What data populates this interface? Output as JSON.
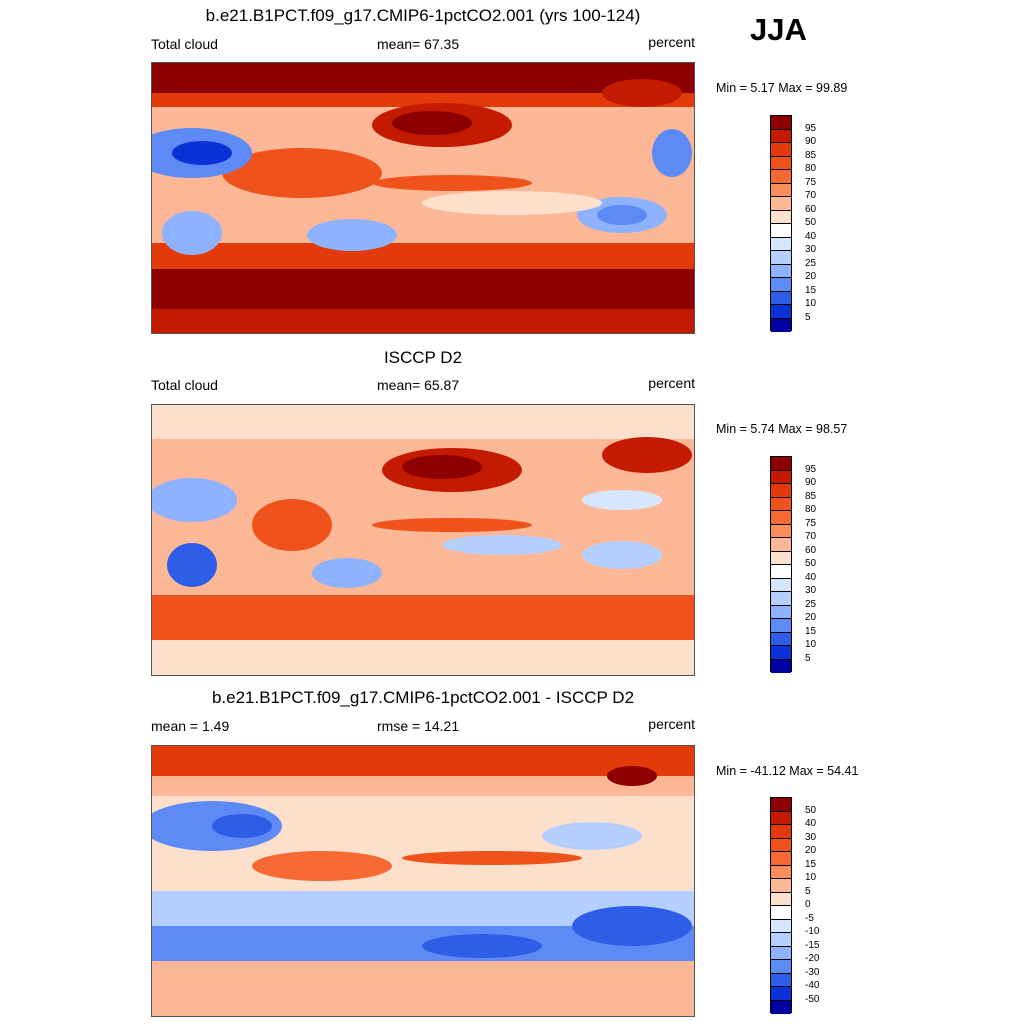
{
  "season": "JJA",
  "panels": [
    {
      "title": "b.e21.B1PCT.f09_g17.CMIP6-1pctCO2.001 (yrs 100-124)",
      "left_label": "Total cloud",
      "center_label": "mean=  67.35",
      "right_label": "percent",
      "minmax": "Min =   5.17 Max =  99.89",
      "variable": "Total cloud",
      "mean": 67.35,
      "min": 5.17,
      "max": 99.89,
      "units": "percent",
      "colorbar_ticks": [
        "95",
        "90",
        "85",
        "80",
        "75",
        "70",
        "60",
        "50",
        "40",
        "30",
        "25",
        "20",
        "15",
        "10",
        "5"
      ],
      "colorbar_colors": [
        "#8c0000",
        "#c41a00",
        "#e33a0a",
        "#f0521c",
        "#f76a34",
        "#fb8d5a",
        "#fcb896",
        "#fde0cc",
        "#ffffff",
        "#d6e6ff",
        "#b5d0ff",
        "#8fb2ff",
        "#5e8af5",
        "#2e5de8",
        "#0a32d6",
        "#0000a0"
      ]
    },
    {
      "title": "ISCCP D2",
      "left_label": "Total cloud",
      "center_label": "mean=  65.87",
      "right_label": "percent",
      "minmax": "Min =   5.74 Max =  98.57",
      "variable": "Total cloud",
      "mean": 65.87,
      "min": 5.74,
      "max": 98.57,
      "units": "percent",
      "colorbar_ticks": [
        "95",
        "90",
        "85",
        "80",
        "75",
        "70",
        "60",
        "50",
        "40",
        "30",
        "25",
        "20",
        "15",
        "10",
        "5"
      ],
      "colorbar_colors": [
        "#8c0000",
        "#c41a00",
        "#e33a0a",
        "#f0521c",
        "#f76a34",
        "#fb8d5a",
        "#fcb896",
        "#fde0cc",
        "#ffffff",
        "#d6e6ff",
        "#b5d0ff",
        "#8fb2ff",
        "#5e8af5",
        "#2e5de8",
        "#0a32d6",
        "#0000a0"
      ]
    },
    {
      "title": "b.e21.B1PCT.f09_g17.CMIP6-1pctCO2.001 - ISCCP D2",
      "left_label": "mean =   1.49",
      "center_label": "rmse =  14.21",
      "right_label": "percent",
      "minmax": "Min = -41.12 Max =  54.41",
      "mean": 1.49,
      "rmse": 14.21,
      "min": -41.12,
      "max": 54.41,
      "units": "percent",
      "colorbar_ticks": [
        "50",
        "40",
        "30",
        "20",
        "15",
        "10",
        "5",
        "0",
        "-5",
        "-10",
        "-15",
        "-20",
        "-30",
        "-40",
        "-50"
      ],
      "colorbar_colors": [
        "#8c0000",
        "#c41a00",
        "#e33a0a",
        "#f0521c",
        "#f76a34",
        "#fb8d5a",
        "#fcb896",
        "#fde0cc",
        "#ffffff",
        "#d6e6ff",
        "#b5d0ff",
        "#8fb2ff",
        "#5e8af5",
        "#2e5de8",
        "#0a32d6",
        "#0000a0"
      ]
    }
  ]
}
